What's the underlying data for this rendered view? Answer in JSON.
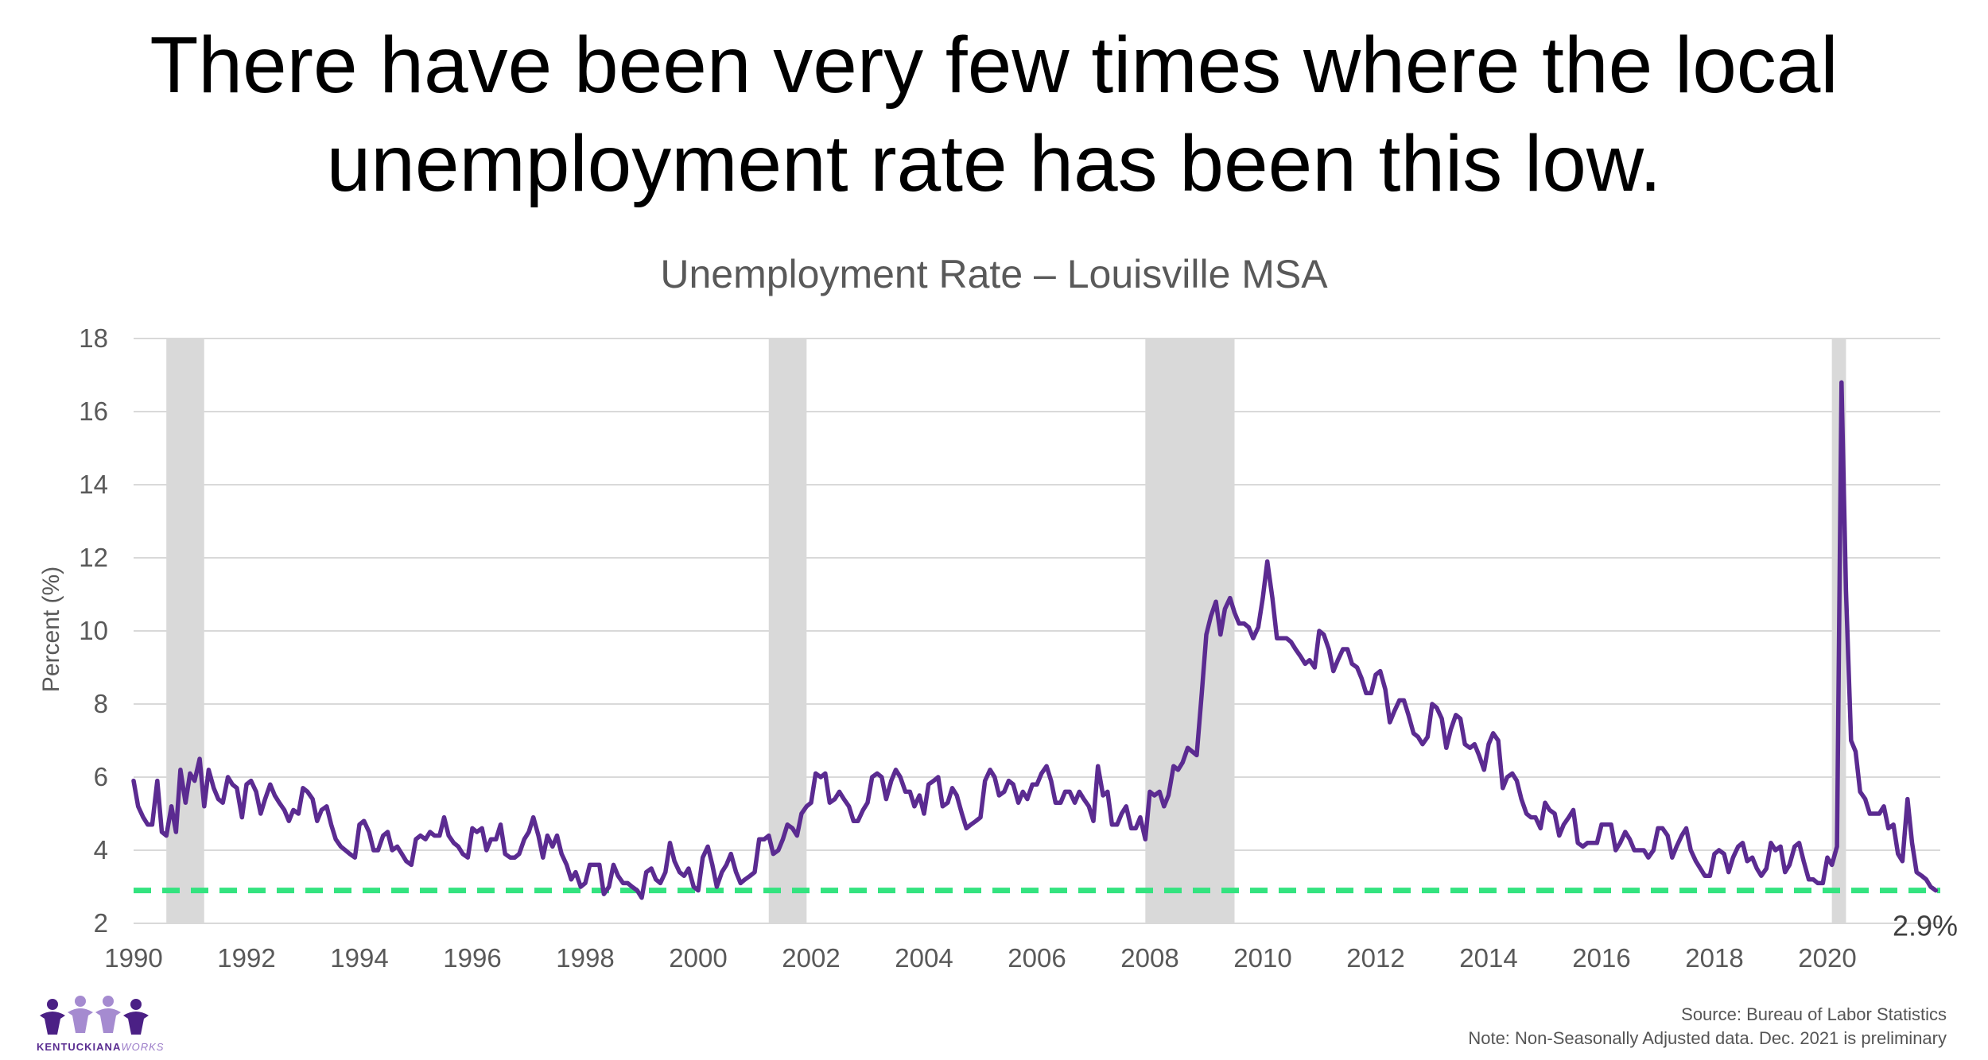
{
  "headline": {
    "line1": "There have been very few times where the local",
    "line2": "unemployment rate has been this low."
  },
  "chart_data": {
    "type": "line",
    "title": "Unemployment Rate – Louisville MSA",
    "ylabel": "Percent (%)",
    "xlabel": "",
    "xlim": [
      1990,
      2022.0
    ],
    "ylim": [
      2,
      18
    ],
    "y_ticks": [
      2,
      4,
      6,
      8,
      10,
      12,
      14,
      16,
      18
    ],
    "x_ticks": [
      "1990",
      "1992",
      "1994",
      "1996",
      "1998",
      "2000",
      "2002",
      "2004",
      "2006",
      "2008",
      "2010",
      "2012",
      "2014",
      "2016",
      "2018",
      "2020"
    ],
    "grid": "horizontal",
    "recessions": [
      [
        1990.58,
        1991.25
      ],
      [
        2001.25,
        2001.92
      ],
      [
        2007.92,
        2009.5
      ],
      [
        2020.08,
        2020.33
      ]
    ],
    "reference_line": {
      "value": 2.9,
      "label": "2.9%",
      "color": "#33e37f"
    },
    "colors": {
      "line": "#5b2b91",
      "recession": "#d9d9d9",
      "grid": "#d9d9d9",
      "reference": "#33e37f"
    },
    "series": [
      {
        "x": [
          1990.0,
          1990.08,
          1990.17,
          1990.25,
          1990.33,
          1990.42,
          1990.5,
          1990.58,
          1990.67,
          1990.75,
          1990.83,
          1990.92,
          1991.0,
          1991.08,
          1991.17,
          1991.25,
          1991.33,
          1991.42,
          1991.5,
          1991.58,
          1991.67,
          1991.75,
          1991.83,
          1991.92,
          1992.0,
          1992.08,
          1992.17,
          1992.25,
          1992.33,
          1992.42,
          1992.5,
          1992.58,
          1992.67,
          1992.75,
          1992.83,
          1992.92,
          1993.0,
          1993.08,
          1993.17,
          1993.25,
          1993.33,
          1993.42,
          1993.5,
          1993.58,
          1993.67,
          1993.75,
          1993.83,
          1993.92,
          1994.0,
          1994.08,
          1994.17,
          1994.25,
          1994.33,
          1994.42,
          1994.5,
          1994.58,
          1994.67,
          1994.75,
          1994.83,
          1994.92,
          1995.0,
          1995.08,
          1995.17,
          1995.25,
          1995.33,
          1995.42,
          1995.5,
          1995.58,
          1995.67,
          1995.75,
          1995.83,
          1995.92,
          1996.0,
          1996.08,
          1996.17,
          1996.25,
          1996.33,
          1996.42,
          1996.5,
          1996.58,
          1996.67,
          1996.75,
          1996.83,
          1996.92,
          1997.0,
          1997.08,
          1997.17,
          1997.25,
          1997.33,
          1997.42,
          1997.5,
          1997.58,
          1997.67,
          1997.75,
          1997.83,
          1997.92,
          1998.0,
          1998.08,
          1998.17,
          1998.25,
          1998.33,
          1998.42,
          1998.5,
          1998.58,
          1998.67,
          1998.75,
          1998.83,
          1998.92,
          1999.0,
          1999.08,
          1999.17,
          1999.25,
          1999.33,
          1999.42,
          1999.5,
          1999.58,
          1999.67,
          1999.75,
          1999.83,
          1999.92,
          2000.0,
          2000.08,
          2000.17,
          2000.25,
          2000.33,
          2000.42,
          2000.5,
          2000.58,
          2000.67,
          2000.75,
          2000.83,
          2000.92,
          2001.0,
          2001.08,
          2001.17,
          2001.25,
          2001.33,
          2001.42,
          2001.5,
          2001.58,
          2001.67,
          2001.75,
          2001.83,
          2001.92,
          2002.0,
          2002.08,
          2002.17,
          2002.25,
          2002.33,
          2002.42,
          2002.5,
          2002.58,
          2002.67,
          2002.75,
          2002.83,
          2002.92,
          2003.0,
          2003.08,
          2003.17,
          2003.25,
          2003.33,
          2003.42,
          2003.5,
          2003.58,
          2003.67,
          2003.75,
          2003.83,
          2003.92,
          2004.0,
          2004.08,
          2004.17,
          2004.25,
          2004.33,
          2004.42,
          2004.5,
          2004.58,
          2004.67,
          2004.75,
          2004.83,
          2004.92,
          2005.0,
          2005.08,
          2005.17,
          2005.25,
          2005.33,
          2005.42,
          2005.5,
          2005.58,
          2005.67,
          2005.75,
          2005.83,
          2005.92,
          2006.0,
          2006.08,
          2006.17,
          2006.25,
          2006.33,
          2006.42,
          2006.5,
          2006.58,
          2006.67,
          2006.75,
          2006.83,
          2006.92,
          2007.0,
          2007.08,
          2007.17,
          2007.25,
          2007.33,
          2007.42,
          2007.5,
          2007.58,
          2007.67,
          2007.75,
          2007.83,
          2007.92,
          2008.0,
          2008.08,
          2008.17,
          2008.25,
          2008.33,
          2008.42,
          2008.5,
          2008.58,
          2008.67,
          2008.75,
          2008.83,
          2008.92,
          2009.0,
          2009.08,
          2009.17,
          2009.25,
          2009.33,
          2009.42,
          2009.5,
          2009.58,
          2009.67,
          2009.75,
          2009.83,
          2009.92,
          2010.0,
          2010.08,
          2010.17,
          2010.25,
          2010.33,
          2010.42,
          2010.5,
          2010.58,
          2010.67,
          2010.75,
          2010.83,
          2010.92,
          2011.0,
          2011.08,
          2011.17,
          2011.25,
          2011.33,
          2011.42,
          2011.5,
          2011.58,
          2011.67,
          2011.75,
          2011.83,
          2011.92,
          2012.0,
          2012.08,
          2012.17,
          2012.25,
          2012.33,
          2012.42,
          2012.5,
          2012.58,
          2012.67,
          2012.75,
          2012.83,
          2012.92,
          2013.0,
          2013.08,
          2013.17,
          2013.25,
          2013.33,
          2013.42,
          2013.5,
          2013.58,
          2013.67,
          2013.75,
          2013.83,
          2013.92,
          2014.0,
          2014.08,
          2014.17,
          2014.25,
          2014.33,
          2014.42,
          2014.5,
          2014.58,
          2014.67,
          2014.75,
          2014.83,
          2014.92,
          2015.0,
          2015.08,
          2015.17,
          2015.25,
          2015.33,
          2015.42,
          2015.5,
          2015.58,
          2015.67,
          2015.75,
          2015.83,
          2015.92,
          2016.0,
          2016.08,
          2016.17,
          2016.25,
          2016.33,
          2016.42,
          2016.5,
          2016.58,
          2016.67,
          2016.75,
          2016.83,
          2016.92,
          2017.0,
          2017.08,
          2017.17,
          2017.25,
          2017.33,
          2017.42,
          2017.5,
          2017.58,
          2017.67,
          2017.75,
          2017.83,
          2017.92,
          2018.0,
          2018.08,
          2018.17,
          2018.25,
          2018.33,
          2018.42,
          2018.5,
          2018.58,
          2018.67,
          2018.75,
          2018.83,
          2018.92,
          2019.0,
          2019.08,
          2019.17,
          2019.25,
          2019.33,
          2019.42,
          2019.5,
          2019.58,
          2019.67,
          2019.75,
          2019.83,
          2019.92,
          2020.0,
          2020.08,
          2020.17,
          2020.25,
          2020.33,
          2020.42,
          2020.5,
          2020.58,
          2020.67,
          2020.75,
          2020.83,
          2020.92,
          2021.0,
          2021.08,
          2021.17,
          2021.25,
          2021.33,
          2021.42,
          2021.5,
          2021.58,
          2021.67,
          2021.75,
          2021.83,
          2021.92
        ],
        "values": [
          5.9,
          5.2,
          4.9,
          4.7,
          4.7,
          5.9,
          4.5,
          4.4,
          5.2,
          4.5,
          6.2,
          5.3,
          6.1,
          5.9,
          6.5,
          5.2,
          6.2,
          5.7,
          5.4,
          5.3,
          6.0,
          5.8,
          5.7,
          4.9,
          5.8,
          5.9,
          5.6,
          5.0,
          5.4,
          5.8,
          5.5,
          5.3,
          5.1,
          4.8,
          5.1,
          5.0,
          5.7,
          5.6,
          5.4,
          4.8,
          5.1,
          5.2,
          4.7,
          4.3,
          4.1,
          4.0,
          3.9,
          3.8,
          4.7,
          4.8,
          4.5,
          4.0,
          4.0,
          4.4,
          4.5,
          4.0,
          4.1,
          3.9,
          3.7,
          3.6,
          4.3,
          4.4,
          4.3,
          4.5,
          4.4,
          4.4,
          4.9,
          4.4,
          4.2,
          4.1,
          3.9,
          3.8,
          4.6,
          4.5,
          4.6,
          4.0,
          4.3,
          4.3,
          4.7,
          3.9,
          3.8,
          3.8,
          3.9,
          4.3,
          4.5,
          4.9,
          4.4,
          3.8,
          4.4,
          4.1,
          4.4,
          3.9,
          3.6,
          3.2,
          3.4,
          3.0,
          3.1,
          3.6,
          3.6,
          3.6,
          2.8,
          3.0,
          3.6,
          3.3,
          3.1,
          3.1,
          3.0,
          2.9,
          2.7,
          3.4,
          3.5,
          3.2,
          3.1,
          3.4,
          4.2,
          3.7,
          3.4,
          3.3,
          3.5,
          3.0,
          2.9,
          3.8,
          4.1,
          3.6,
          3.0,
          3.4,
          3.6,
          3.9,
          3.4,
          3.1,
          3.2,
          3.3,
          3.4,
          4.3,
          4.3,
          4.4,
          3.9,
          4.0,
          4.3,
          4.7,
          4.6,
          4.4,
          5.0,
          5.2,
          5.3,
          6.1,
          6.0,
          6.1,
          5.3,
          5.4,
          5.6,
          5.4,
          5.2,
          4.8,
          4.8,
          5.1,
          5.3,
          6.0,
          6.1,
          6.0,
          5.4,
          5.9,
          6.2,
          6.0,
          5.6,
          5.6,
          5.2,
          5.5,
          5.0,
          5.8,
          5.9,
          6.0,
          5.2,
          5.3,
          5.7,
          5.5,
          5.0,
          4.6,
          4.7,
          4.8,
          4.9,
          5.9,
          6.2,
          6.0,
          5.5,
          5.6,
          5.9,
          5.8,
          5.3,
          5.6,
          5.4,
          5.8,
          5.8,
          6.1,
          6.3,
          5.9,
          5.3,
          5.3,
          5.6,
          5.6,
          5.3,
          5.6,
          5.4,
          5.2,
          4.8,
          6.3,
          5.5,
          5.6,
          4.7,
          4.7,
          5.0,
          5.2,
          4.6,
          4.6,
          4.9,
          4.3,
          5.6,
          5.5,
          5.6,
          5.2,
          5.5,
          6.3,
          6.2,
          6.4,
          6.8,
          6.7,
          6.6,
          8.3,
          9.9,
          10.4,
          10.8,
          9.9,
          10.6,
          10.9,
          10.5,
          10.2,
          10.2,
          10.1,
          9.8,
          10.1,
          10.9,
          11.9,
          10.9,
          9.8,
          9.8,
          9.8,
          9.7,
          9.5,
          9.3,
          9.1,
          9.2,
          9.0,
          10.0,
          9.9,
          9.5,
          8.9,
          9.2,
          9.5,
          9.5,
          9.1,
          9.0,
          8.7,
          8.3,
          8.3,
          8.8,
          8.9,
          8.4,
          7.5,
          7.8,
          8.1,
          8.1,
          7.7,
          7.2,
          7.1,
          6.9,
          7.1,
          8.0,
          7.9,
          7.6,
          6.8,
          7.3,
          7.7,
          7.6,
          6.9,
          6.8,
          6.9,
          6.6,
          6.2,
          6.9,
          7.2,
          7.0,
          5.7,
          6.0,
          6.1,
          5.9,
          5.4,
          5.0,
          4.9,
          4.9,
          4.6,
          5.3,
          5.1,
          5.0,
          4.4,
          4.7,
          4.9,
          5.1,
          4.2,
          4.1,
          4.2,
          4.2,
          4.2,
          4.7,
          4.7,
          4.7,
          4.0,
          4.2,
          4.5,
          4.3,
          4.0,
          4.0,
          4.0,
          3.8,
          4.0,
          4.6,
          4.6,
          4.4,
          3.8,
          4.1,
          4.4,
          4.6,
          4.0,
          3.7,
          3.5,
          3.3,
          3.3,
          3.9,
          4.0,
          3.9,
          3.4,
          3.8,
          4.1,
          4.2,
          3.7,
          3.8,
          3.5,
          3.3,
          3.5,
          4.2,
          4.0,
          4.1,
          3.4,
          3.6,
          4.1,
          4.2,
          3.7,
          3.2,
          3.2,
          3.1,
          3.1,
          3.8,
          3.6,
          4.1,
          16.8,
          11.1,
          7.0,
          6.7,
          5.6,
          5.4,
          5.0,
          5.0,
          5.0,
          5.2,
          4.6,
          4.7,
          3.9,
          3.7,
          5.4,
          4.2,
          3.4,
          3.3,
          3.2,
          3.0,
          2.9
        ]
      }
    ]
  },
  "footer": {
    "source": "Source: Bureau of Labor Statistics",
    "note": "Note: Non-Seasonally Adjusted data. Dec. 2021 is preliminary"
  },
  "logo": {
    "text_main": "KENTUCKIANA",
    "text_accent": "WORKS",
    "colors": {
      "dark": "#4b2085",
      "light": "#a58bd0"
    }
  }
}
